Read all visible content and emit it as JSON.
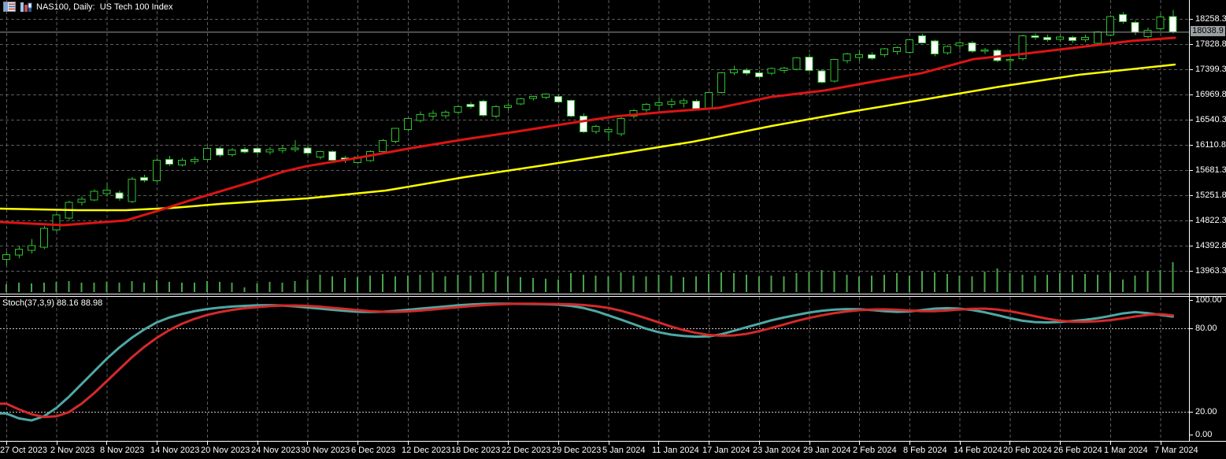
{
  "window": {
    "title": "NAS100, Daily:  US Tech 100 Index",
    "icons": [
      {
        "name": "grid-icon"
      },
      {
        "name": "bar-chart-icon"
      }
    ]
  },
  "colors": {
    "background": "#000000",
    "grid": "#5C5C5C",
    "candle": "#2EC22E",
    "bear_fill": "#FFFFFF",
    "bull_fill": "#000000",
    "volume": "#4AA34A",
    "ma_fast": "#DC1414",
    "ma_slow": "#FFFF00",
    "stoch_main": "#4FA8A4",
    "stoch_signal": "#D42A2A",
    "axis_text": "#FFFFFF",
    "current_price_bg": "#9AA0A2",
    "current_price_line": "#9A9A9A",
    "level_dotted": "#C8C8C8",
    "separator": "#FFFFFF"
  },
  "price_axis": {
    "labels": [
      "18258.3",
      "17828.8",
      "17399.3",
      "16969.8",
      "16540.3",
      "16110.8",
      "15681.3",
      "15251.8",
      "14822.3",
      "14392.8",
      "13963.3"
    ],
    "current": "18038.9"
  },
  "stoch_axis": {
    "labels": [
      "100.00",
      "80.00",
      "20.00",
      "0.00"
    ]
  },
  "date_axis": {
    "labels": [
      "27 Oct 2023",
      "2 Nov 2023",
      "8 Nov 2023",
      "14 Nov 2023",
      "20 Nov 2023",
      "24 Nov 2023",
      "30 Nov 2023",
      "6 Dec 2023",
      "12 Dec 2023",
      "18 Dec 2023",
      "22 Dec 2023",
      "29 Dec 2023",
      "5 Jan 2024",
      "11 Jan 2024",
      "17 Jan 2024",
      "23 Jan 2024",
      "29 Jan 2024",
      "2 Feb 2024",
      "8 Feb 2024",
      "14 Feb 2024",
      "20 Feb 2024",
      "26 Feb 2024",
      "1 Mar 2024",
      "7 Mar 2024"
    ]
  },
  "indicator": {
    "name": "Stoch(37,3,9)",
    "value_main": "88.16",
    "value_signal": "88.98"
  },
  "chart_data": [
    {
      "type": "candlestick",
      "title": "NAS100 Daily — US Tech 100 Index",
      "x_tick_labels": [
        "27 Oct 2023",
        "2 Nov 2023",
        "8 Nov 2023",
        "14 Nov 2023",
        "20 Nov 2023",
        "24 Nov 2023",
        "30 Nov 2023",
        "6 Dec 2023",
        "12 Dec 2023",
        "18 Dec 2023",
        "22 Dec 2023",
        "29 Dec 2023",
        "5 Jan 2024",
        "11 Jan 2024",
        "17 Jan 2024",
        "23 Jan 2024",
        "29 Jan 2024",
        "2 Feb 2024",
        "8 Feb 2024",
        "14 Feb 2024",
        "20 Feb 2024",
        "26 Feb 2024",
        "1 Mar 2024",
        "7 Mar 2024"
      ],
      "y_tick_values": [
        18258.3,
        17828.8,
        17399.3,
        16969.8,
        16540.3,
        16110.8,
        15681.3,
        15251.8,
        14822.3,
        14392.8,
        13963.3
      ],
      "current_price": 18038.9,
      "candles_format": [
        "open",
        "high",
        "low",
        "close"
      ],
      "candles": [
        [
          14160,
          14290,
          14060,
          14240
        ],
        [
          14230,
          14390,
          14180,
          14330
        ],
        [
          14310,
          14510,
          14260,
          14395
        ],
        [
          14365,
          14730,
          14330,
          14685
        ],
        [
          14660,
          14950,
          14630,
          14915
        ],
        [
          14860,
          15160,
          14830,
          15130
        ],
        [
          15130,
          15230,
          15080,
          15185
        ],
        [
          15170,
          15350,
          15150,
          15320
        ],
        [
          15280,
          15450,
          15230,
          15340
        ],
        [
          15290,
          15330,
          15160,
          15200
        ],
        [
          15145,
          15560,
          15120,
          15530
        ],
        [
          15555,
          15600,
          15470,
          15510
        ],
        [
          15500,
          15880,
          15470,
          15850
        ],
        [
          15865,
          15920,
          15750,
          15780
        ],
        [
          15770,
          15890,
          15740,
          15850
        ],
        [
          15830,
          15910,
          15780,
          15860
        ],
        [
          15860,
          16080,
          15830,
          16050
        ],
        [
          16050,
          16085,
          15900,
          15935
        ],
        [
          15940,
          16060,
          15910,
          16025
        ],
        [
          16035,
          16070,
          15960,
          15990
        ],
        [
          16050,
          16080,
          15950,
          15980
        ],
        [
          15990,
          16070,
          15940,
          16030
        ],
        [
          16020,
          16100,
          15970,
          16050
        ],
        [
          16030,
          16190,
          15990,
          16060
        ],
        [
          16060,
          16100,
          15930,
          15970
        ],
        [
          15905,
          16010,
          15860,
          16000
        ],
        [
          16000,
          16020,
          15840,
          15852
        ],
        [
          15890,
          15920,
          15800,
          15850
        ],
        [
          15810,
          15930,
          15780,
          15905
        ],
        [
          15840,
          16020,
          15820,
          16000
        ],
        [
          15995,
          16210,
          15960,
          16185
        ],
        [
          16170,
          16400,
          16140,
          16390
        ],
        [
          16370,
          16580,
          16340,
          16560
        ],
        [
          16530,
          16680,
          16490,
          16630
        ],
        [
          16600,
          16700,
          16540,
          16650
        ],
        [
          16610,
          16700,
          16560,
          16670
        ],
        [
          16665,
          16790,
          16630,
          16760
        ],
        [
          16805,
          16840,
          16730,
          16760
        ],
        [
          16855,
          16880,
          16590,
          16615
        ],
        [
          16600,
          16790,
          16570,
          16760
        ],
        [
          16750,
          16820,
          16700,
          16780
        ],
        [
          16812,
          16910,
          16790,
          16895
        ],
        [
          16905,
          16950,
          16870,
          16935
        ],
        [
          16920,
          16990,
          16890,
          16975
        ],
        [
          16935,
          16970,
          16820,
          16840
        ],
        [
          16870,
          16880,
          16580,
          16600
        ],
        [
          16600,
          16650,
          16310,
          16330
        ],
        [
          16340,
          16450,
          16300,
          16425
        ],
        [
          16330,
          16420,
          16180,
          16370
        ],
        [
          16300,
          16580,
          16260,
          16560
        ],
        [
          16600,
          16720,
          16560,
          16695
        ],
        [
          16705,
          16820,
          16670,
          16800
        ],
        [
          16790,
          16920,
          16700,
          16830
        ],
        [
          16800,
          16900,
          16740,
          16850
        ],
        [
          16820,
          16900,
          16750,
          16860
        ],
        [
          16855,
          16890,
          16700,
          16730
        ],
        [
          16730,
          17020,
          16710,
          17005
        ],
        [
          17000,
          17350,
          16990,
          17340
        ],
        [
          17340,
          17460,
          17300,
          17390
        ],
        [
          17385,
          17420,
          17300,
          17335
        ],
        [
          17340,
          17380,
          17250,
          17270
        ],
        [
          17335,
          17430,
          17300,
          17410
        ],
        [
          17380,
          17440,
          17330,
          17420
        ],
        [
          17400,
          17610,
          17380,
          17595
        ],
        [
          17610,
          17660,
          17360,
          17380
        ],
        [
          17370,
          17400,
          17160,
          17180
        ],
        [
          17200,
          17580,
          17170,
          17570
        ],
        [
          17550,
          17680,
          17500,
          17660
        ],
        [
          17600,
          17720,
          17540,
          17650
        ],
        [
          17650,
          17690,
          17560,
          17590
        ],
        [
          17645,
          17760,
          17610,
          17745
        ],
        [
          17700,
          17790,
          17650,
          17770
        ],
        [
          17690,
          17910,
          17670,
          17900
        ],
        [
          17970,
          18000,
          17840,
          17850
        ],
        [
          17880,
          17900,
          17620,
          17660
        ],
        [
          17680,
          17810,
          17650,
          17790
        ],
        [
          17800,
          17870,
          17740,
          17850
        ],
        [
          17850,
          17880,
          17680,
          17710
        ],
        [
          17710,
          17760,
          17660,
          17730
        ],
        [
          17720,
          17750,
          17520,
          17550
        ],
        [
          17550,
          17610,
          17380,
          17570
        ],
        [
          17580,
          17990,
          17550,
          17970
        ],
        [
          17970,
          18010,
          17900,
          17940
        ],
        [
          17940,
          17990,
          17870,
          17900
        ],
        [
          17910,
          17980,
          17860,
          17950
        ],
        [
          17940,
          17970,
          17850,
          17890
        ],
        [
          17900,
          17990,
          17860,
          17940
        ],
        [
          17845,
          18050,
          17820,
          18040
        ],
        [
          17980,
          18320,
          17960,
          18300
        ],
        [
          18330,
          18370,
          18180,
          18210
        ],
        [
          18200,
          18230,
          17980,
          18030
        ],
        [
          17955,
          18110,
          17930,
          18065
        ],
        [
          18090,
          18350,
          18050,
          18290
        ],
        [
          18300,
          18410,
          18010,
          18039
        ]
      ],
      "volumes": [
        10,
        12,
        11,
        12,
        13,
        14,
        12,
        12,
        13,
        12,
        14,
        12,
        15,
        13,
        12,
        12,
        14,
        13,
        12,
        6,
        11,
        13,
        12,
        14,
        16,
        22,
        20,
        18,
        19,
        21,
        23,
        20,
        21,
        22,
        25,
        20,
        22,
        21,
        24,
        26,
        20,
        19,
        18,
        17,
        16,
        24,
        22,
        21,
        20,
        25,
        21,
        20,
        22,
        21,
        19,
        20,
        23,
        25,
        24,
        22,
        20,
        21,
        20,
        24,
        26,
        28,
        26,
        22,
        20,
        21,
        22,
        24,
        21,
        26,
        25,
        23,
        21,
        20,
        26,
        30,
        24,
        22,
        21,
        22,
        24,
        22,
        23,
        22,
        25,
        16,
        21,
        27,
        28,
        38
      ],
      "overlays": [
        {
          "name": "ma-fast-red",
          "color": "#DC1414",
          "points": [
            [
              0,
              14796
            ],
            [
              80,
              14742
            ],
            [
              160,
              14823
            ],
            [
              200,
              14984
            ],
            [
              240,
              15158
            ],
            [
              280,
              15319
            ],
            [
              320,
              15480
            ],
            [
              360,
              15655
            ],
            [
              390,
              15749
            ],
            [
              457,
              15896
            ],
            [
              523,
              16057
            ],
            [
              590,
              16205
            ],
            [
              657,
              16339
            ],
            [
              720,
              16473
            ],
            [
              780,
              16594
            ],
            [
              847,
              16674
            ],
            [
              913,
              16742
            ],
            [
              980,
              16930
            ],
            [
              1047,
              17037
            ],
            [
              1113,
              17198
            ],
            [
              1170,
              17332
            ],
            [
              1237,
              17574
            ],
            [
              1303,
              17668
            ],
            [
              1370,
              17775
            ],
            [
              1437,
              17882
            ],
            [
              1492,
              17936
            ]
          ]
        },
        {
          "name": "ma-slow-yellow",
          "color": "#FFFF00",
          "points": [
            [
              0,
              15024
            ],
            [
              100,
              14997
            ],
            [
              160,
              14997
            ],
            [
              220,
              15037
            ],
            [
              280,
              15104
            ],
            [
              340,
              15158
            ],
            [
              390,
              15198
            ],
            [
              490,
              15332
            ],
            [
              590,
              15560
            ],
            [
              690,
              15762
            ],
            [
              780,
              15950
            ],
            [
              880,
              16164
            ],
            [
              980,
              16433
            ],
            [
              1080,
              16674
            ],
            [
              1170,
              16876
            ],
            [
              1270,
              17104
            ],
            [
              1370,
              17305
            ],
            [
              1492,
              17480
            ]
          ]
        }
      ]
    },
    {
      "type": "line",
      "name": "Stochastic",
      "params": "37,3,9",
      "range": [
        0,
        100
      ],
      "levels": [
        80,
        20
      ],
      "y_tick_values": [
        100,
        80,
        20,
        0
      ],
      "current": {
        "main": 88.16,
        "signal": 88.98
      },
      "series": [
        {
          "name": "main",
          "color": "#4FA8A4",
          "values": [
            19,
            15.5,
            14,
            17,
            23,
            31,
            40,
            49,
            58,
            66,
            73,
            79,
            84,
            87.5,
            90,
            92,
            93.5,
            94.5,
            95.3,
            95.8,
            96.2,
            96.3,
            96,
            95.4,
            94.6,
            93.8,
            93,
            92.2,
            91.6,
            91.4,
            91.6,
            92.2,
            93,
            93.8,
            94.6,
            95.4,
            96.2,
            96.8,
            97.2,
            97.3,
            97.3,
            97.2,
            97.1,
            97,
            96.6,
            95.8,
            94.3,
            92,
            89,
            86,
            82.8,
            79.5,
            77,
            75.3,
            74.3,
            73.8,
            74,
            75.5,
            78,
            80.5,
            83,
            85.5,
            87.5,
            89.3,
            91,
            92.3,
            93.1,
            93.5,
            93.4,
            92.8,
            92,
            91.5,
            91.8,
            92.8,
            93.8,
            94.2,
            93.8,
            92.8,
            91.2,
            89.2,
            87,
            85.2,
            84.2,
            84,
            84.3,
            85,
            85.8,
            87,
            88.6,
            90.4,
            91.4,
            90.6,
            89.3,
            88.16
          ]
        },
        {
          "name": "signal",
          "color": "#D42A2A",
          "values": [
            26,
            22,
            18.5,
            16.5,
            17,
            20,
            26,
            33.5,
            42,
            50.5,
            59,
            66.5,
            73,
            78.5,
            83,
            86.5,
            89.3,
            91.3,
            92.9,
            94.1,
            94.9,
            95.6,
            96,
            96.1,
            95.8,
            95.2,
            94.4,
            93.6,
            92.8,
            92,
            91.6,
            91.5,
            91.8,
            92.4,
            93.2,
            94,
            94.8,
            95.6,
            96.3,
            96.8,
            97.1,
            97.3,
            97.3,
            97.2,
            97.1,
            96.9,
            96.4,
            95.6,
            94.3,
            92.3,
            89.8,
            87,
            84,
            81,
            78.5,
            76.5,
            75.1,
            74.5,
            74.7,
            75.8,
            77.7,
            80,
            82.5,
            85,
            87.2,
            89,
            90.6,
            91.8,
            92.7,
            93.2,
            93.3,
            93,
            92.5,
            92,
            92,
            92.5,
            93.2,
            93.7,
            93.8,
            93.2,
            92,
            90.3,
            88.4,
            86.6,
            85.2,
            84.5,
            84.4,
            84.8,
            85.6,
            86.8,
            88.2,
            89.3,
            89.9,
            88.98
          ]
        }
      ]
    }
  ]
}
